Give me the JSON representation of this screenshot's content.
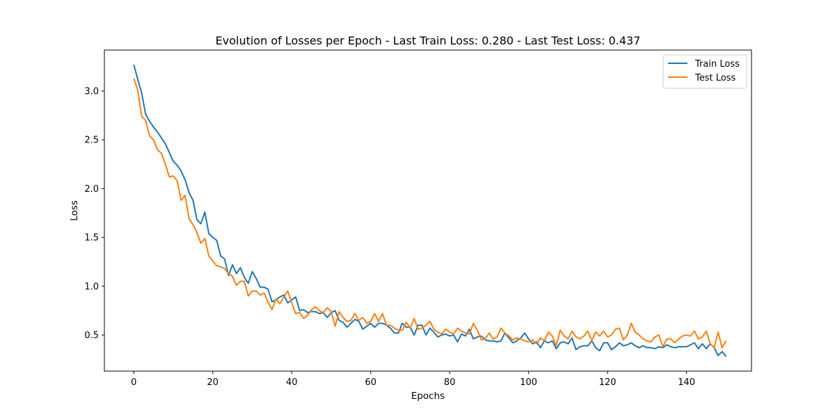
{
  "chart_data": {
    "type": "line",
    "title": "Evolution of Losses per Epoch - Last Train Loss: 0.280 - Last Test Loss: 0.437",
    "xlabel": "Epochs",
    "ylabel": "Loss",
    "xlim": [
      -7.45,
      156.45
    ],
    "ylim": [
      0.13,
      3.42
    ],
    "xticks": [
      0,
      20,
      40,
      60,
      80,
      100,
      120,
      140
    ],
    "yticks": [
      0.5,
      1.0,
      1.5,
      2.0,
      2.5,
      3.0
    ],
    "xtick_labels": [
      "0",
      "20",
      "40",
      "60",
      "80",
      "100",
      "120",
      "140"
    ],
    "ytick_labels": [
      "0.5",
      "1.0",
      "1.5",
      "2.0",
      "2.5",
      "3.0"
    ],
    "grid": false,
    "legend_position": "top-right",
    "series": [
      {
        "name": "Train Loss",
        "color": "#1f77b4",
        "x_start": 0,
        "values": [
          3.27,
          3.12,
          2.98,
          2.76,
          2.69,
          2.63,
          2.58,
          2.52,
          2.46,
          2.37,
          2.28,
          2.24,
          2.18,
          2.09,
          1.96,
          1.88,
          1.68,
          1.64,
          1.76,
          1.54,
          1.5,
          1.47,
          1.31,
          1.28,
          1.11,
          1.22,
          1.13,
          1.19,
          1.09,
          1.03,
          1.15,
          1.08,
          0.99,
          0.99,
          0.97,
          0.84,
          0.86,
          0.89,
          0.91,
          0.83,
          0.86,
          0.89,
          0.75,
          0.76,
          0.73,
          0.74,
          0.74,
          0.72,
          0.73,
          0.68,
          0.73,
          0.75,
          0.65,
          0.63,
          0.58,
          0.62,
          0.66,
          0.64,
          0.56,
          0.59,
          0.62,
          0.58,
          0.62,
          0.62,
          0.6,
          0.57,
          0.52,
          0.52,
          0.62,
          0.58,
          0.58,
          0.5,
          0.6,
          0.6,
          0.5,
          0.57,
          0.53,
          0.48,
          0.5,
          0.51,
          0.49,
          0.5,
          0.43,
          0.51,
          0.49,
          0.56,
          0.46,
          0.48,
          0.49,
          0.45,
          0.44,
          0.44,
          0.43,
          0.44,
          0.52,
          0.47,
          0.42,
          0.44,
          0.47,
          0.52,
          0.46,
          0.41,
          0.43,
          0.37,
          0.44,
          0.42,
          0.44,
          0.36,
          0.42,
          0.43,
          0.41,
          0.47,
          0.35,
          0.38,
          0.39,
          0.39,
          0.44,
          0.37,
          0.34,
          0.42,
          0.42,
          0.35,
          0.38,
          0.42,
          0.39,
          0.4,
          0.42,
          0.39,
          0.37,
          0.39,
          0.37,
          0.37,
          0.36,
          0.38,
          0.37,
          0.4,
          0.38,
          0.37,
          0.38,
          0.38,
          0.38,
          0.4,
          0.42,
          0.36,
          0.41,
          0.36,
          0.41,
          0.37,
          0.29,
          0.33,
          0.28
        ]
      },
      {
        "name": "Test Loss",
        "color": "#ff7f0e",
        "x_start": 0,
        "values": [
          3.13,
          3.01,
          2.74,
          2.7,
          2.54,
          2.5,
          2.4,
          2.36,
          2.25,
          2.12,
          2.13,
          2.08,
          1.88,
          1.93,
          1.69,
          1.63,
          1.55,
          1.44,
          1.49,
          1.31,
          1.26,
          1.21,
          1.2,
          1.18,
          1.13,
          1.1,
          1.01,
          1.05,
          1.05,
          0.9,
          0.95,
          0.95,
          0.91,
          0.93,
          0.84,
          0.76,
          0.87,
          0.82,
          0.89,
          0.95,
          0.83,
          0.72,
          0.73,
          0.67,
          0.7,
          0.76,
          0.79,
          0.75,
          0.73,
          0.78,
          0.74,
          0.59,
          0.74,
          0.68,
          0.64,
          0.65,
          0.72,
          0.65,
          0.68,
          0.62,
          0.64,
          0.72,
          0.64,
          0.72,
          0.6,
          0.6,
          0.57,
          0.55,
          0.55,
          0.63,
          0.57,
          0.67,
          0.56,
          0.57,
          0.6,
          0.64,
          0.56,
          0.53,
          0.51,
          0.56,
          0.53,
          0.51,
          0.57,
          0.54,
          0.52,
          0.51,
          0.62,
          0.55,
          0.45,
          0.46,
          0.52,
          0.46,
          0.48,
          0.57,
          0.52,
          0.49,
          0.45,
          0.47,
          0.46,
          0.44,
          0.43,
          0.45,
          0.41,
          0.47,
          0.44,
          0.53,
          0.49,
          0.39,
          0.55,
          0.49,
          0.46,
          0.54,
          0.48,
          0.46,
          0.49,
          0.54,
          0.44,
          0.53,
          0.49,
          0.54,
          0.48,
          0.5,
          0.56,
          0.57,
          0.45,
          0.5,
          0.62,
          0.53,
          0.5,
          0.46,
          0.44,
          0.43,
          0.48,
          0.5,
          0.38,
          0.46,
          0.46,
          0.42,
          0.46,
          0.49,
          0.5,
          0.49,
          0.54,
          0.46,
          0.48,
          0.54,
          0.41,
          0.37,
          0.53,
          0.37,
          0.44
        ]
      }
    ]
  }
}
